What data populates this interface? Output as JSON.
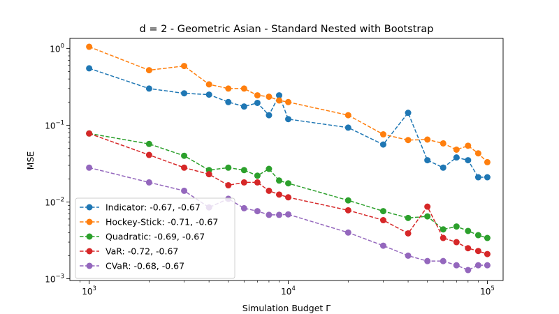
{
  "chart_data": {
    "type": "line",
    "title": "d = 2 - Geometric Asian - Standard Nested with Bootstrap",
    "xlabel": "Simulation Budget Γ",
    "ylabel": "MSE",
    "xscale": "log",
    "yscale": "log",
    "xlim": [
      800,
      120000
    ],
    "ylim": [
      0.00095,
      1.35
    ],
    "x_ticks": [
      {
        "value": 1000,
        "base": "10",
        "exp": "3"
      },
      {
        "value": 10000,
        "base": "10",
        "exp": "4"
      },
      {
        "value": 100000,
        "base": "10",
        "exp": "5"
      }
    ],
    "y_ticks": [
      {
        "value": 0.001,
        "base": "10",
        "exp": "−3"
      },
      {
        "value": 0.01,
        "base": "10",
        "exp": "−2"
      },
      {
        "value": 0.1,
        "base": "10",
        "exp": "−1"
      },
      {
        "value": 1,
        "base": "10",
        "exp": "0"
      }
    ],
    "grid": false,
    "legend_position": "lower-left",
    "x": [
      1000,
      2000,
      3000,
      4000,
      5000,
      6000,
      7000,
      8000,
      9000,
      10000,
      20000,
      30000,
      40000,
      50000,
      60000,
      70000,
      80000,
      90000,
      100000
    ],
    "series": [
      {
        "name": "Indicator: -0.67, -0.67",
        "color": "#1f77b4",
        "values": [
          0.55,
          0.3,
          0.26,
          0.25,
          0.2,
          0.175,
          0.195,
          0.135,
          0.245,
          0.12,
          0.093,
          0.056,
          0.145,
          0.035,
          0.028,
          0.038,
          0.035,
          0.021,
          0.021
        ]
      },
      {
        "name": "Hockey-Stick: -0.71, -0.67",
        "color": "#ff7f0e",
        "values": [
          1.05,
          0.52,
          0.59,
          0.34,
          0.3,
          0.3,
          0.245,
          0.235,
          0.21,
          0.2,
          0.135,
          0.076,
          0.064,
          0.065,
          0.058,
          0.048,
          0.054,
          0.043,
          0.033
        ]
      },
      {
        "name": "Quadratic: -0.69, -0.67",
        "color": "#2ca02c",
        "values": [
          0.078,
          0.057,
          0.04,
          0.026,
          0.028,
          0.026,
          0.022,
          0.027,
          0.019,
          0.0175,
          0.0105,
          0.0076,
          0.0062,
          0.0065,
          0.0044,
          0.0048,
          0.0042,
          0.0037,
          0.0034
        ]
      },
      {
        "name": "VaR: -0.72, -0.67",
        "color": "#d62728",
        "values": [
          0.078,
          0.041,
          0.028,
          0.023,
          0.0165,
          0.018,
          0.018,
          0.014,
          0.0125,
          0.0115,
          0.0078,
          0.0058,
          0.0039,
          0.0087,
          0.0034,
          0.003,
          0.0025,
          0.0023,
          0.0021
        ]
      },
      {
        "name": "CVaR: -0.68, -0.67",
        "color": "#9467bd",
        "values": [
          0.028,
          0.018,
          0.014,
          0.0085,
          0.011,
          0.0083,
          0.0076,
          0.0068,
          0.0068,
          0.0069,
          0.004,
          0.0027,
          0.002,
          0.0017,
          0.0017,
          0.0015,
          0.0013,
          0.0015,
          0.0015
        ]
      }
    ]
  }
}
